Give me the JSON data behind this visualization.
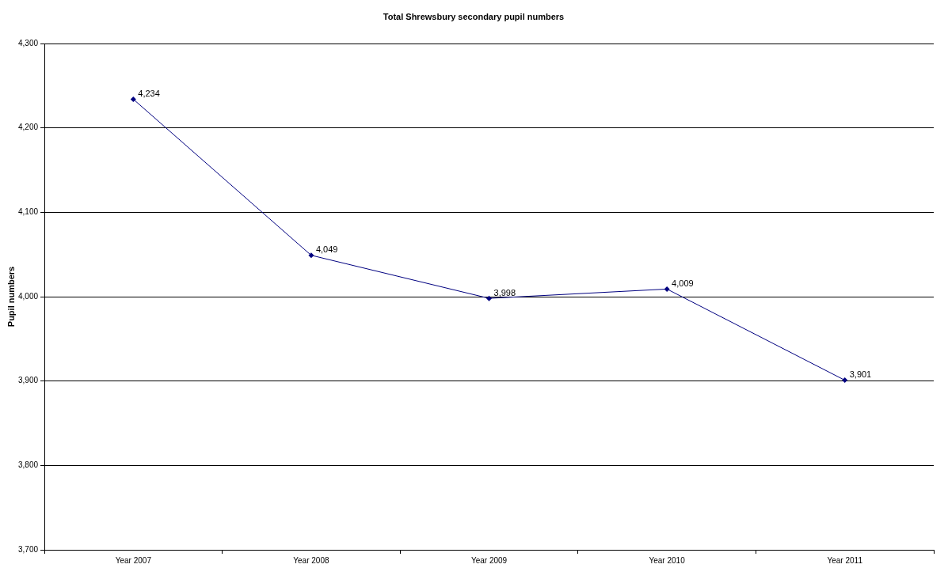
{
  "chart_data": {
    "type": "line",
    "title": "Total Shrewsbury secondary pupil numbers",
    "ylabel": "Pupil numbers",
    "categories": [
      "Year 2007",
      "Year 2008",
      "Year 2009",
      "Year 2010",
      "Year 2011"
    ],
    "series": [
      {
        "color": "#000080",
        "values": [
          4234,
          4049,
          3998,
          4009,
          3901
        ],
        "value_labels": [
          "4,234",
          "4,049",
          "3,998",
          "4,009",
          "3,901"
        ]
      }
    ],
    "ylim": [
      3700,
      4300
    ],
    "yticks": [
      {
        "value": 3700,
        "label": "3,700"
      },
      {
        "value": 3800,
        "label": "3,800"
      },
      {
        "value": 3900,
        "label": "3,900"
      },
      {
        "value": 4000,
        "label": "4,000"
      },
      {
        "value": 4100,
        "label": "4,100"
      },
      {
        "value": 4200,
        "label": "4,200"
      },
      {
        "value": 4300,
        "label": "4,300"
      }
    ],
    "grid": "y",
    "marker": "diamond",
    "line_style": "solid",
    "legend": false
  }
}
